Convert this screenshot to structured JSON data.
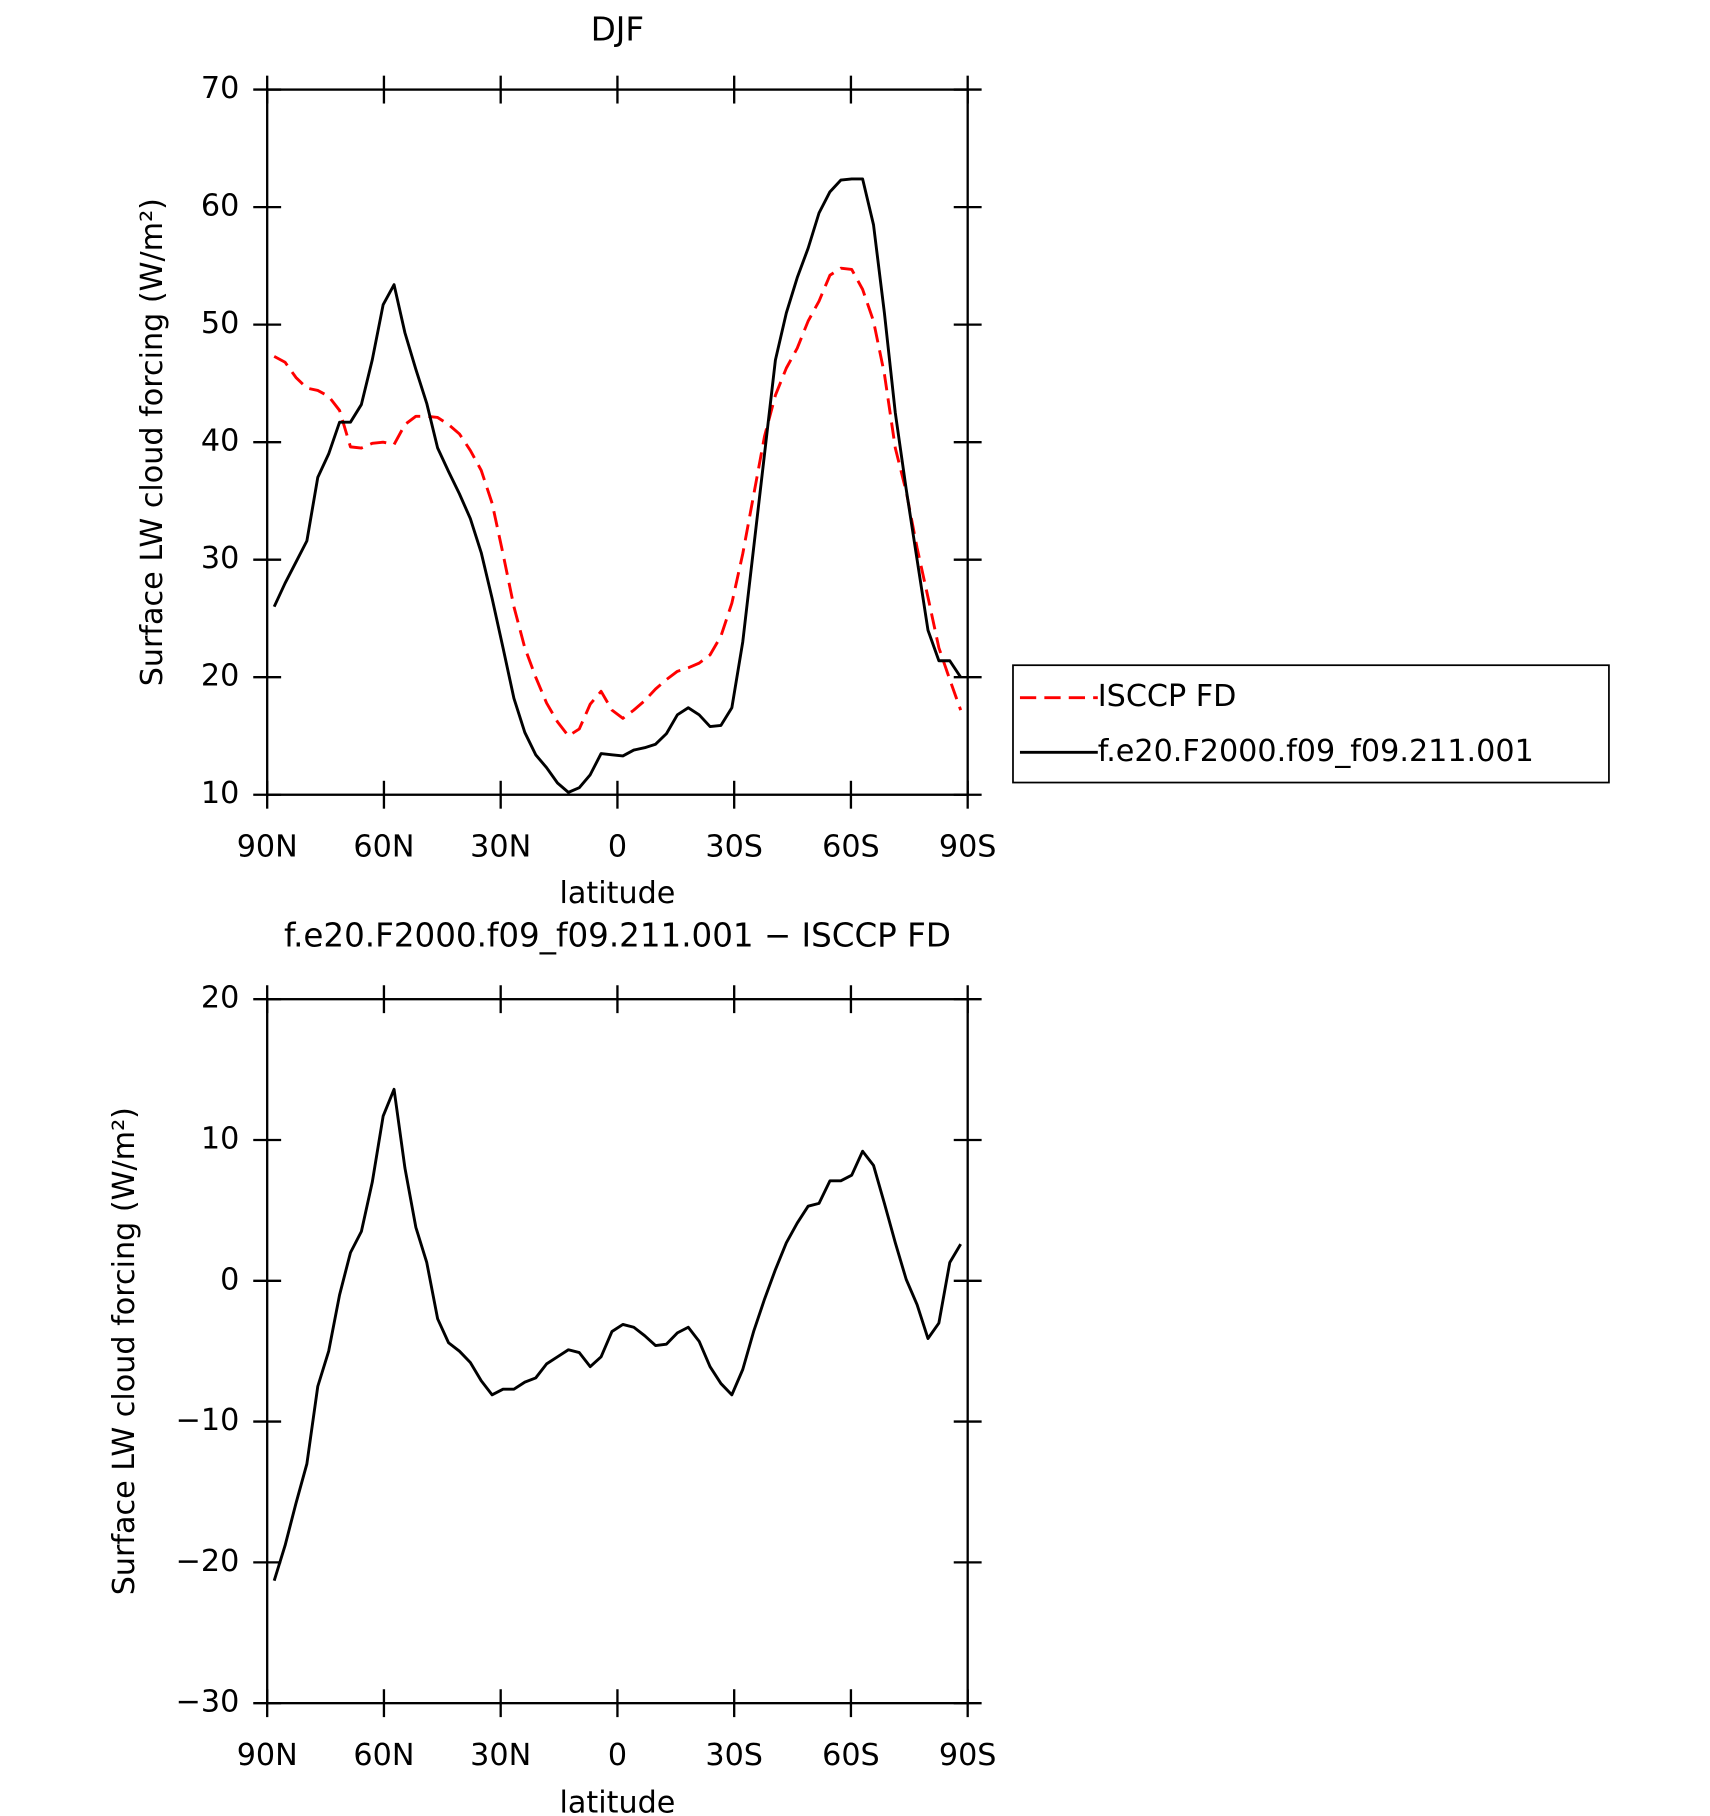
{
  "chart_data": [
    {
      "type": "line",
      "title": "DJF",
      "xlabel": "latitude",
      "ylabel": "Surface LW cloud forcing (W/m²)",
      "xlim": [
        90,
        -90
      ],
      "xticks": [
        {
          "value": 90,
          "label": "90N"
        },
        {
          "value": 60,
          "label": "60N"
        },
        {
          "value": 30,
          "label": "30N"
        },
        0,
        {
          "value": -30,
          "label": "30S"
        },
        {
          "value": -60,
          "label": "60S"
        },
        {
          "value": -90,
          "label": "90S"
        }
      ],
      "ylim": [
        10,
        70
      ],
      "yticks": [
        10,
        20,
        30,
        40,
        50,
        60,
        70
      ],
      "legend": "right",
      "x": [
        88.2,
        85.4,
        82.6,
        79.8,
        77,
        74.2,
        71.4,
        68.6,
        65.8,
        63,
        60.2,
        57.4,
        54.6,
        51.8,
        49,
        46.2,
        43.4,
        40.6,
        37.8,
        35,
        32.2,
        29.4,
        26.6,
        23.8,
        21,
        18.2,
        15.4,
        12.6,
        9.8,
        7,
        4.2,
        1.4,
        -1.4,
        -4.2,
        -7,
        -9.8,
        -12.6,
        -15.4,
        -18.2,
        -21,
        -23.8,
        -26.6,
        -29.4,
        -32.2,
        -35,
        -37.8,
        -40.6,
        -43.4,
        -46.2,
        -49,
        -51.8,
        -54.6,
        -57.4,
        -60.2,
        -63,
        -65.8,
        -68.6,
        -71.4,
        -74.2,
        -77,
        -79.8,
        -82.6,
        -85.4,
        -88.2
      ],
      "series": [
        {
          "name": "ISCCP FD",
          "color": "#ff0000",
          "dashed": true,
          "values": [
            47.3,
            46.8,
            45.5,
            44.6,
            44.4,
            43.9,
            42.7,
            39.6,
            39.5,
            39.9,
            40.0,
            39.8,
            41.5,
            42.2,
            42.2,
            42.1,
            41.5,
            40.7,
            39.3,
            37.6,
            34.8,
            30.5,
            26,
            22.5,
            20,
            17.8,
            16.2,
            15,
            15.6,
            17.7,
            18.8,
            17.2,
            16.5,
            17.2,
            18,
            19,
            19.8,
            20.5,
            20.8,
            21.2,
            21.9,
            23.5,
            26.3,
            30.5,
            35.5,
            40.5,
            44,
            46.3,
            48,
            50.3,
            52,
            54.2,
            54.8,
            54.7,
            53,
            50.3,
            45.8,
            39.5,
            35.8,
            31,
            26.8,
            22.5,
            19.8,
            17.2
          ]
        },
        {
          "name": "f.e20.F2000.f09_f09.211.001",
          "color": "#000000",
          "dashed": false,
          "values": [
            26,
            28,
            29.8,
            31.6,
            37,
            39,
            41.7,
            41.7,
            43.2,
            47,
            51.7,
            53.4,
            49.3,
            46.2,
            43.3,
            39.5,
            37.5,
            35.6,
            33.5,
            30.6,
            26.7,
            22.5,
            18.2,
            15.3,
            13.4,
            12.3,
            11,
            10.2,
            10.6,
            11.7,
            13.5,
            13.4,
            13.3,
            13.8,
            14.0,
            14.3,
            15.2,
            16.8,
            17.4,
            16.8,
            15.8,
            15.9,
            17.4,
            23,
            31,
            39,
            47,
            51,
            54,
            56.5,
            59.5,
            61.3,
            62.3,
            62.4,
            62.4,
            58.5,
            51,
            42.5,
            36,
            30,
            24,
            21.4,
            21.4,
            20
          ]
        }
      ]
    },
    {
      "type": "line",
      "title": "f.e20.F2000.f09_f09.211.001 − ISCCP FD",
      "xlabel": "latitude",
      "ylabel": "Surface LW cloud forcing (W/m²)",
      "xlim": [
        90,
        -90
      ],
      "xticks": [
        {
          "value": 90,
          "label": "90N"
        },
        {
          "value": 60,
          "label": "60N"
        },
        {
          "value": 30,
          "label": "30N"
        },
        0,
        {
          "value": -30,
          "label": "30S"
        },
        {
          "value": -60,
          "label": "60S"
        },
        {
          "value": -90,
          "label": "90S"
        }
      ],
      "ylim": [
        -30,
        20
      ],
      "yticks": [
        {
          "value": -30,
          "label": "−30"
        },
        {
          "value": -20,
          "label": "−20"
        },
        {
          "value": -10,
          "label": "−10"
        },
        0,
        10,
        20
      ],
      "x": [
        88.2,
        85.4,
        82.6,
        79.8,
        77,
        74.2,
        71.4,
        68.6,
        65.8,
        63,
        60.2,
        57.4,
        54.6,
        51.8,
        49,
        46.2,
        43.4,
        40.6,
        37.8,
        35,
        32.2,
        29.4,
        26.6,
        23.8,
        21,
        18.2,
        15.4,
        12.6,
        9.8,
        7,
        4.2,
        1.4,
        -1.4,
        -4.2,
        -7,
        -9.8,
        -12.6,
        -15.4,
        -18.2,
        -21,
        -23.8,
        -26.6,
        -29.4,
        -32.2,
        -35,
        -37.8,
        -40.6,
        -43.4,
        -46.2,
        -49,
        -51.8,
        -54.6,
        -57.4,
        -60.2,
        -63,
        -65.8,
        -68.6,
        -71.4,
        -74.2,
        -77,
        -79.8,
        -82.6,
        -85.4,
        -88.2
      ],
      "series": [
        {
          "color": "#000000",
          "dashed": false,
          "values": [
            -21.3,
            -18.8,
            -15.8,
            -13,
            -7.5,
            -5,
            -1,
            2,
            3.5,
            7,
            11.7,
            13.6,
            8,
            3.8,
            1.3,
            -2.7,
            -4.4,
            -5,
            -5.8,
            -7.1,
            -8.1,
            -7.7,
            -7.7,
            -7.2,
            -6.9,
            -5.9,
            -5.4,
            -4.9,
            -5.1,
            -6.1,
            -5.4,
            -3.6,
            -3.1,
            -3.3,
            -3.9,
            -4.6,
            -4.5,
            -3.7,
            -3.3,
            -4.3,
            -6.1,
            -7.3,
            -8.1,
            -6.3,
            -3.6,
            -1.3,
            0.8,
            2.7,
            4.1,
            5.3,
            5.5,
            7.1,
            7.1,
            7.5,
            9.2,
            8.2,
            5.5,
            2.7,
            0.1,
            -1.7,
            -4.1,
            -3,
            1.3,
            2.6
          ]
        }
      ]
    }
  ]
}
